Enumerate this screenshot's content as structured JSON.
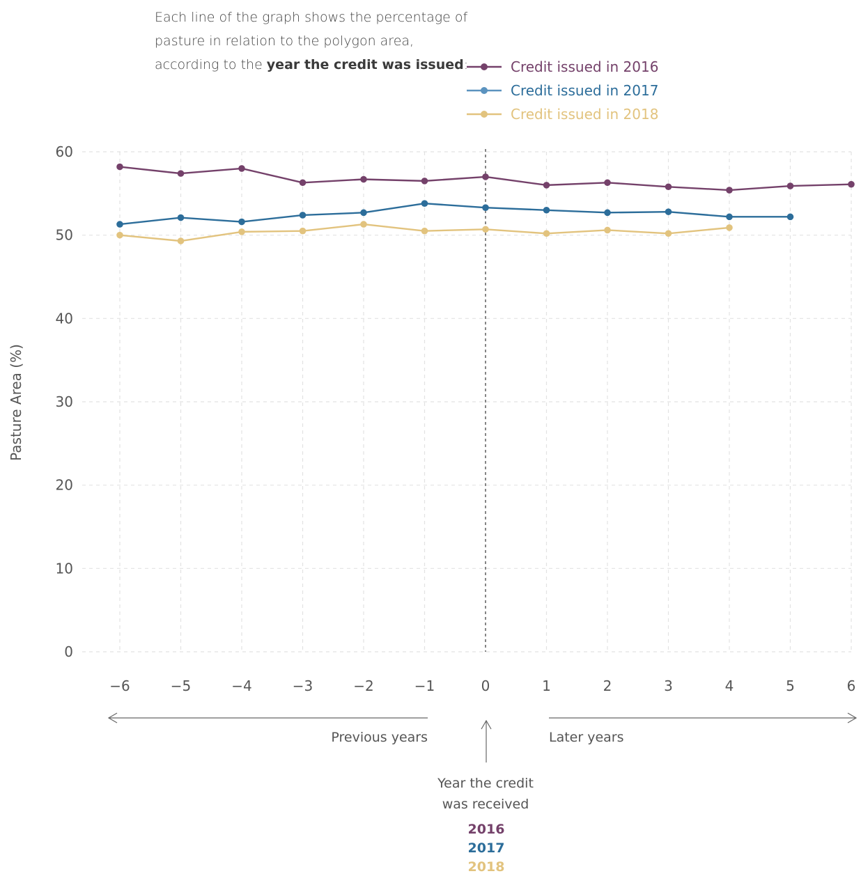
{
  "intro": {
    "part1": "Each line of the graph shows the percentage of pasture in relation to the polygon area, according to the ",
    "bold": "year the credit was issued",
    "part2": ":"
  },
  "chart_data": {
    "type": "line",
    "xlabel": "",
    "ylabel": "Pasture Area (%)",
    "x": [
      -6,
      -5,
      -4,
      -3,
      -2,
      -1,
      0,
      1,
      2,
      3,
      4,
      5,
      6
    ],
    "x_tick_labels": [
      "−6",
      "−5",
      "−4",
      "−3",
      "−2",
      "−1",
      "0",
      "1",
      "2",
      "3",
      "4",
      "5",
      "6"
    ],
    "y_ticks": [
      0,
      10,
      20,
      30,
      40,
      50,
      60
    ],
    "xlim": [
      -6,
      6
    ],
    "ylim": [
      0,
      60
    ],
    "grid": true,
    "legend_position": "top",
    "reference_line_x": 0,
    "series": [
      {
        "name": "Credit issued in 2016",
        "color": "#74416a",
        "values": [
          58.2,
          57.4,
          58.0,
          56.3,
          56.7,
          56.5,
          57.0,
          56.0,
          56.3,
          55.8,
          55.4,
          55.9,
          56.1
        ]
      },
      {
        "name": "Credit issued in 2017",
        "color": "#2c6d9a",
        "values": [
          51.3,
          52.1,
          51.6,
          52.4,
          52.7,
          53.8,
          53.3,
          53.0,
          52.7,
          52.8,
          52.2,
          52.2,
          null
        ]
      },
      {
        "name": "Credit issued in 2018",
        "color": "#e2c37e",
        "values": [
          50.0,
          49.3,
          50.4,
          50.5,
          51.3,
          50.5,
          50.7,
          50.2,
          50.6,
          50.2,
          50.9,
          null,
          null
        ]
      }
    ],
    "annotations": {
      "previous_years": "Previous years",
      "later_years": "Later years",
      "credit_line1": "Year the credit",
      "credit_line2": "was received",
      "years": [
        {
          "label": "2016",
          "color": "#74416a"
        },
        {
          "label": "2017",
          "color": "#2c6d9a"
        },
        {
          "label": "2018",
          "color": "#e2c37e"
        }
      ]
    }
  }
}
